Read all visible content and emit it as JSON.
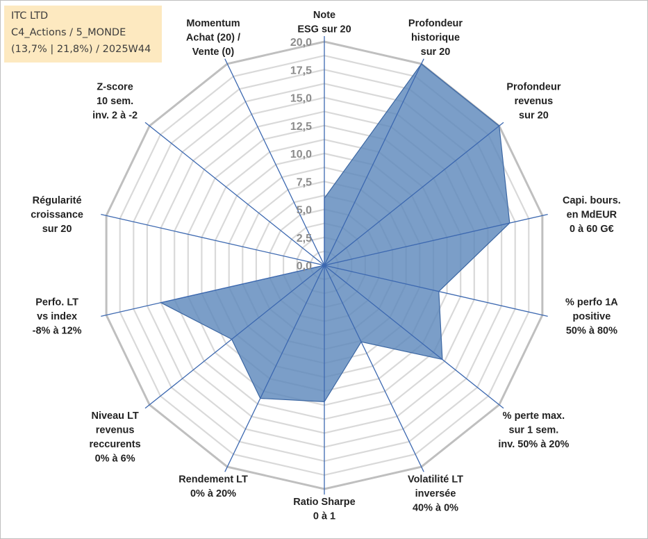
{
  "header": {
    "company": "ITC LTD",
    "category": "C4_Actions / 5_MONDE",
    "stats": "(13,7% | 21,8%) / 2025W44"
  },
  "chart_data": {
    "type": "radar",
    "title": "",
    "range": [
      0,
      20
    ],
    "ticks": [
      "0,0",
      "2,5",
      "5,0",
      "7,5",
      "10,0",
      "12,5",
      "15,0",
      "17,5",
      "20,0"
    ],
    "axes": [
      {
        "name": "note-esg",
        "label": [
          "Note",
          "ESG sur 20"
        ],
        "value": 6.0
      },
      {
        "name": "profondeur-historique",
        "label": [
          "Profondeur",
          "historique",
          "sur 20"
        ],
        "value": 20.0
      },
      {
        "name": "profondeur-revenus",
        "label": [
          "Profondeur",
          "revenus",
          "sur 20"
        ],
        "value": 20.0
      },
      {
        "name": "capi-bours",
        "label": [
          "Capi. bours.",
          "en MdEUR",
          "0 à 60 G€"
        ],
        "value": 17.0
      },
      {
        "name": "perfo-1a-positive",
        "label": [
          "% perfo 1A",
          "positive",
          "50% à 80%"
        ],
        "value": 10.5
      },
      {
        "name": "perte-max",
        "label": [
          "% perte max.",
          "sur 1 sem.",
          "inv. 50% à 20%"
        ],
        "value": 13.5
      },
      {
        "name": "volatilite-lt",
        "label": [
          "Volatilité LT",
          "inversée",
          "40% à 0%"
        ],
        "value": 7.6
      },
      {
        "name": "ratio-sharpe",
        "label": [
          "Ratio Sharpe",
          "0 à 1"
        ],
        "value": 12.2
      },
      {
        "name": "rendement-lt",
        "label": [
          "Rendement LT",
          "0% à 20%"
        ],
        "value": 13.2
      },
      {
        "name": "niveau-lt-revenus",
        "label": [
          "Niveau LT",
          "revenus",
          "reccurents",
          "0% à 6%"
        ],
        "value": 10.6
      },
      {
        "name": "perfo-lt-vs-index",
        "label": [
          "Perfo. LT",
          "vs index",
          "-8% à 12%"
        ],
        "value": 15.0
      },
      {
        "name": "regularite-croissance",
        "label": [
          "Régularité",
          "croissance",
          "sur 20"
        ],
        "value": 0.0
      },
      {
        "name": "z-score",
        "label": [
          "Z-score",
          "10 sem.",
          "inv. 2 à -2"
        ],
        "value": 0.0
      },
      {
        "name": "momentum",
        "label": [
          "Momentum",
          "Achat (20) /",
          "Vente (0)"
        ],
        "value": 0.0
      }
    ],
    "colors": {
      "fill": "#5a86ba",
      "outline": "#3b66a2",
      "spoke": "#3c68b0",
      "grid": "#d9d9d9",
      "outer_grid": "#bfbfbf",
      "tick": "#8c8c8c"
    }
  }
}
